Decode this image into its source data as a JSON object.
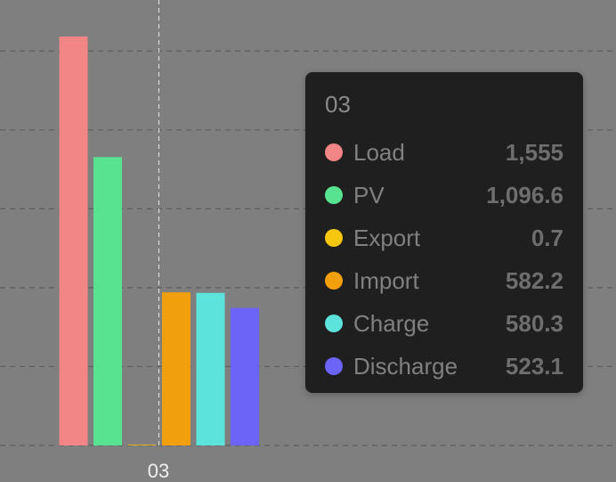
{
  "chart_data": {
    "type": "bar",
    "categories": [
      "03"
    ],
    "series": [
      {
        "name": "Load",
        "values": [
          1555
        ],
        "color": "#f28585"
      },
      {
        "name": "PV",
        "values": [
          1096.6
        ],
        "color": "#57e390"
      },
      {
        "name": "Export",
        "values": [
          0.7
        ],
        "color": "#f7c60f"
      },
      {
        "name": "Import",
        "values": [
          582.2
        ],
        "color": "#f29f0d"
      },
      {
        "name": "Charge",
        "values": [
          580.3
        ],
        "color": "#5ce4dc"
      },
      {
        "name": "Discharge",
        "values": [
          523.1
        ],
        "color": "#6c63f7"
      }
    ],
    "ylim": [
      0,
      1650
    ],
    "yticks": [
      0,
      300,
      600,
      900,
      1200,
      1500
    ],
    "grid": true,
    "crosshair_category": "03"
  },
  "tooltip": {
    "title": "03",
    "rows": [
      {
        "label": "Load",
        "value": "1,555",
        "color": "#f28585"
      },
      {
        "label": "PV",
        "value": "1,096.6",
        "color": "#57e390"
      },
      {
        "label": "Export",
        "value": "0.7",
        "color": "#f7c60f"
      },
      {
        "label": "Import",
        "value": "582.2",
        "color": "#f29f0d"
      },
      {
        "label": "Charge",
        "value": "580.3",
        "color": "#5ce4dc"
      },
      {
        "label": "Discharge",
        "value": "523.1",
        "color": "#6c63f7"
      }
    ]
  }
}
